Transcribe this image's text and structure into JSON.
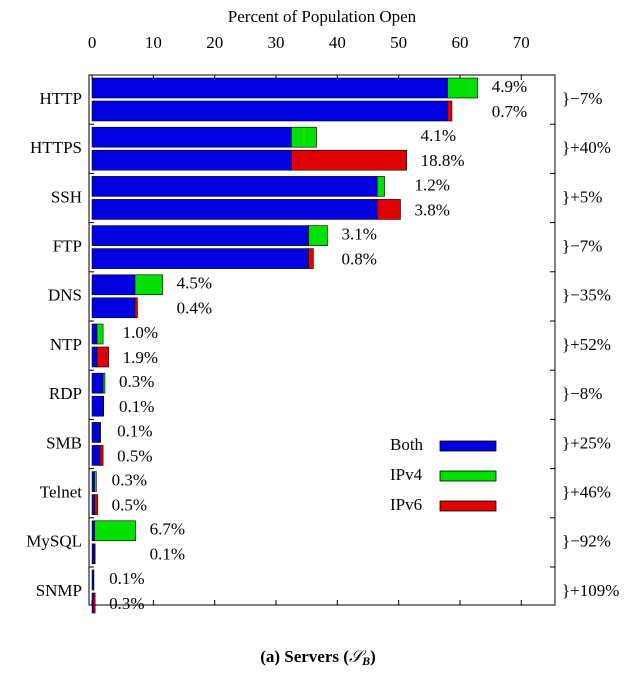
{
  "chart_data": {
    "type": "bar",
    "orientation": "horizontal",
    "xlabel": "Percent of Population Open",
    "xlim": [
      -0.5,
      75.5
    ],
    "xticks": [
      0,
      10,
      20,
      30,
      40,
      50,
      60,
      70
    ],
    "categories": [
      "HTTP",
      "HTTPS",
      "SSH",
      "FTP",
      "DNS",
      "NTP",
      "RDP",
      "SMB",
      "Telnet",
      "MySQL",
      "SNMP"
    ],
    "series": [
      {
        "name": "Both",
        "color": "#0000e0",
        "values": [
          58,
          32.5,
          46.5,
          35.3,
          7,
          0.8,
          1.8,
          1.3,
          0.4,
          0.4,
          0.2
        ]
      },
      {
        "name": "IPv4",
        "color": "#00e000",
        "values": [
          4.9,
          4.1,
          1.2,
          3.1,
          4.5,
          1.0,
          0.3,
          0.1,
          0.3,
          6.7,
          0.1
        ],
        "value_labels": [
          "4.9%",
          "4.1%",
          "1.2%",
          "3.1%",
          "4.5%",
          "1.0%",
          "0.3%",
          "0.1%",
          "0.3%",
          "6.7%",
          "0.1%"
        ]
      },
      {
        "name": "IPv6",
        "color": "#e00000",
        "values": [
          0.7,
          18.8,
          3.8,
          0.8,
          0.4,
          1.9,
          0.1,
          0.5,
          0.5,
          0.1,
          0.3
        ],
        "value_labels": [
          "0.7%",
          "18.8%",
          "3.8%",
          "0.8%",
          "0.4%",
          "1.9%",
          "0.1%",
          "0.5%",
          "0.5%",
          "0.1%",
          "0.3%"
        ]
      }
    ],
    "annotations": [
      "}−7%",
      "}+40%",
      "}+5%",
      "}−7%",
      "}−35%",
      "}+52%",
      "}−8%",
      "}+25%",
      "}+46%",
      "}−92%",
      "}+109%"
    ],
    "legend": "inside-lower-right",
    "caption_prefix": "(a) Servers (",
    "caption_symbol": "𝒮",
    "caption_subscript": "B",
    "caption_suffix": ")"
  }
}
